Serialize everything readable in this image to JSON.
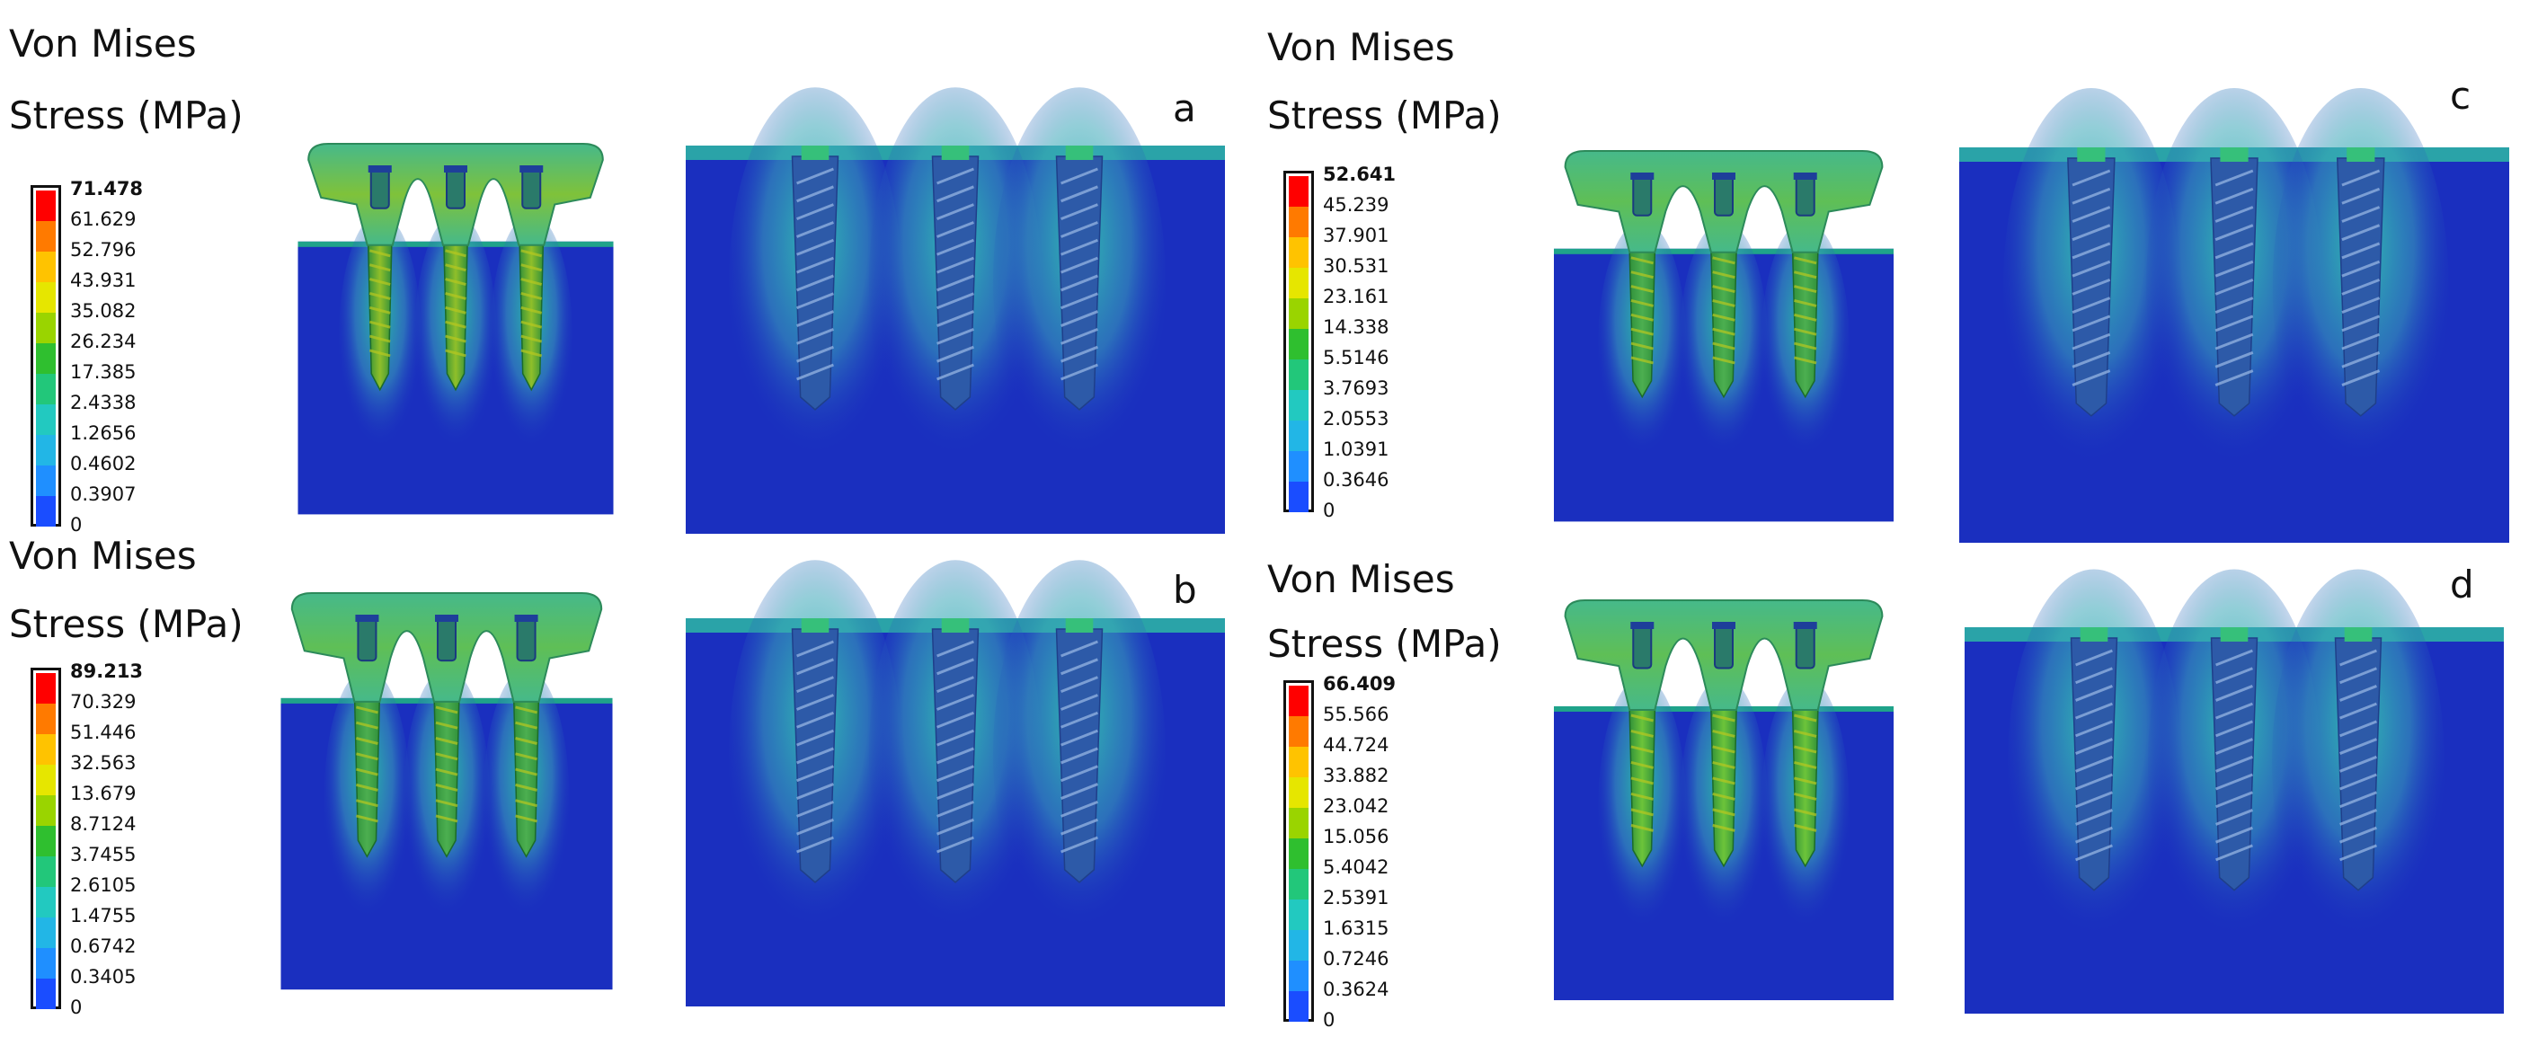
{
  "colors": {
    "background": "#ffffff",
    "bone_blue": "#1a2fbf",
    "bone_halo": "#3aa6b8",
    "implant_green": "#4caf50",
    "legend_scale": [
      "#ff0000",
      "#ff7a00",
      "#ffc300",
      "#e6e600",
      "#9ad400",
      "#2fbf2f",
      "#22c77a",
      "#22c9c0",
      "#22b6e6",
      "#1f8fff",
      "#1a4dff",
      "#0014c8"
    ]
  },
  "panels": {
    "a": {
      "letter": "a",
      "title_line1": "Von Mises",
      "title_line2": "Stress (MPa)",
      "legend": [
        "71.478",
        "61.629",
        "52.796",
        "43.931",
        "35.082",
        "26.234",
        "17.385",
        "2.4338",
        "1.2656",
        "0.4602",
        "0.3907",
        "0"
      ]
    },
    "b": {
      "letter": "b",
      "title_line1": "Von Mises",
      "title_line2": "Stress (MPa)",
      "legend": [
        "89.213",
        "70.329",
        "51.446",
        "32.563",
        "13.679",
        "8.7124",
        "3.7455",
        "2.6105",
        "1.4755",
        "0.6742",
        "0.3405",
        "0"
      ]
    },
    "c": {
      "letter": "c",
      "title_line1": "Von Mises",
      "title_line2": "Stress (MPa)",
      "legend": [
        "52.641",
        "45.239",
        "37.901",
        "30.531",
        "23.161",
        "14.338",
        "5.5146",
        "3.7693",
        "2.0553",
        "1.0391",
        "0.3646",
        "0"
      ]
    },
    "d": {
      "letter": "d",
      "title_line1": "Von Mises",
      "title_line2": "Stress (MPa)",
      "legend": [
        "66.409",
        "55.566",
        "44.724",
        "33.882",
        "23.042",
        "15.056",
        "5.4042",
        "2.5391",
        "1.6315",
        "0.7246",
        "0.3624",
        "0"
      ]
    }
  }
}
